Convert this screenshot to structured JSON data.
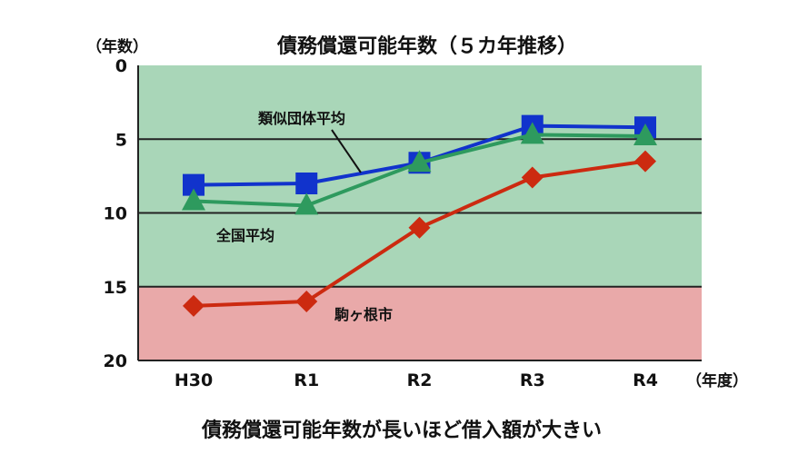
{
  "chart_data": {
    "type": "line",
    "title": "債務償還可能年数（５カ年推移）",
    "ylabel": "（年数）",
    "xlabel": "（年度）",
    "categories": [
      "H30",
      "R1",
      "R2",
      "R3",
      "R4"
    ],
    "ylim": [
      0,
      20
    ],
    "y_inverted": true,
    "yticks": [
      0,
      5,
      10,
      15,
      20
    ],
    "grid": true,
    "bands": [
      {
        "from": 0,
        "to": 15,
        "color": "#a9d6b8"
      },
      {
        "from": 15,
        "to": 20,
        "color": "#e9a9a9"
      }
    ],
    "series": [
      {
        "name": "類似団体平均",
        "values": [
          8.1,
          8.0,
          6.6,
          4.1,
          4.2
        ],
        "color": "#1133cc",
        "marker": "square"
      },
      {
        "name": "全国平均",
        "values": [
          9.2,
          9.5,
          6.6,
          4.7,
          4.8
        ],
        "color": "#2e9a5e",
        "marker": "triangle"
      },
      {
        "name": "駒ヶ根市",
        "values": [
          16.3,
          16.0,
          11.0,
          7.6,
          6.5
        ],
        "color": "#cc2a10",
        "marker": "diamond"
      }
    ],
    "annotations": [
      "類似団体平均",
      "全国平均",
      "駒ヶ根市"
    ]
  },
  "caption": "債務償還可能年数が長いほど借入額が大きい"
}
